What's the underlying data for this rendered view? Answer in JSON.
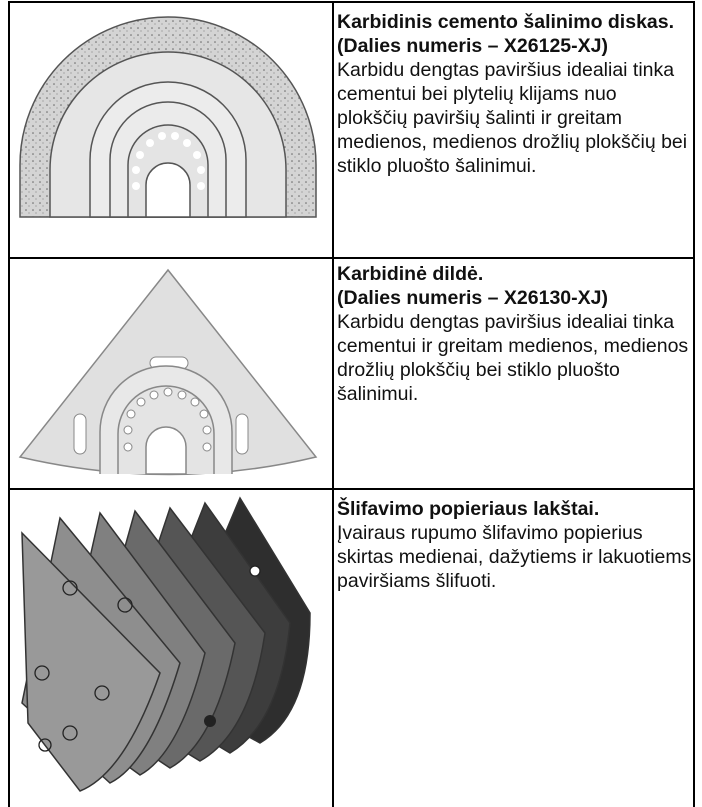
{
  "table": {
    "rows": [
      {
        "title": "Karbidinis cemento šalinimo diskas.",
        "part": "(Dalies numeris – X26125-XJ)",
        "description": "Karbidu dengtas paviršius idealiai tinka cementui bei plytelių klijams nuo plokščių paviršių šalinti ir greitam medienos, medienos drožlių plokščių bei stiklo pluošto šalinimui."
      },
      {
        "title": "Karbidinė dildė.",
        "part": "(Dalies numeris – X26130-XJ)",
        "description": "Karbidu dengtas paviršius idealiai tinka cementui ir greitam medienos, medienos drožlių plokščių bei stiklo pluošto šalinimui."
      },
      {
        "title": "Šlifavimo popieriaus lakštai.",
        "description": "Įvairaus rupumo šlifavimo popierius skirtas medienai, dažytiems ir lakuotiems paviršiams šlifuoti."
      }
    ]
  }
}
